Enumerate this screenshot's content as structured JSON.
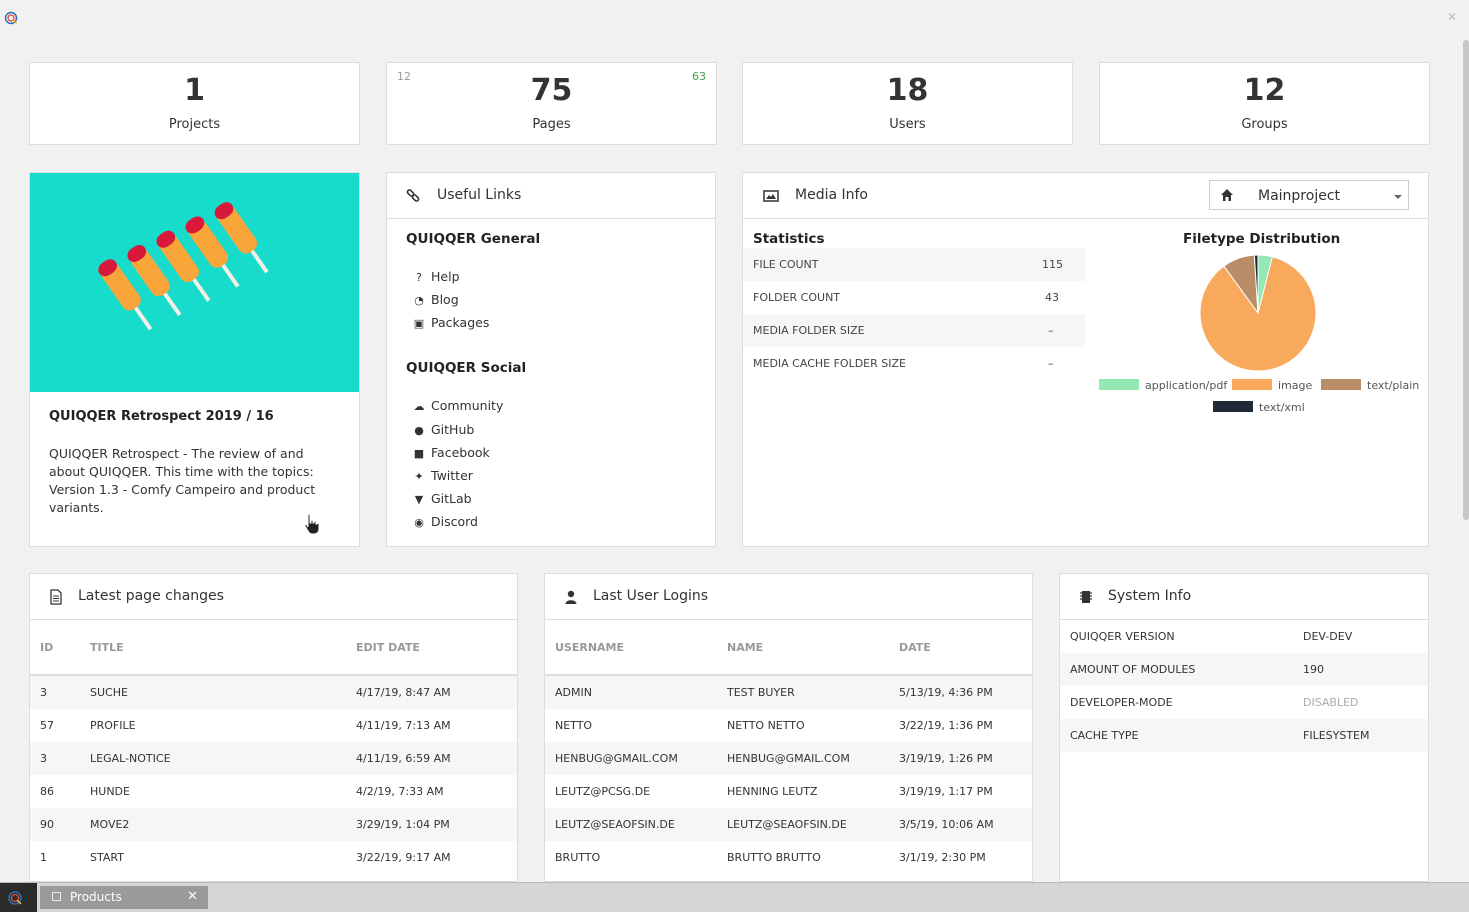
{
  "stats": [
    {
      "value": "1",
      "label": "Projects"
    },
    {
      "value": "75",
      "label": "Pages",
      "left_note": "12",
      "right_note": "63"
    },
    {
      "value": "18",
      "label": "Users"
    },
    {
      "value": "12",
      "label": "Groups"
    }
  ],
  "blog": {
    "title": "QUIQQER Retrospect 2019 / 16",
    "text": "QUIQQER Retrospect - The review of and about QUIQQER. This time with the topics: Version 1.3 - Comfy Campeiro and product variants."
  },
  "links": {
    "title": "Useful Links",
    "general_title": "QUIQQER General",
    "general": [
      {
        "icon": "question-icon",
        "label": "Help"
      },
      {
        "icon": "rss-icon",
        "label": "Blog"
      },
      {
        "icon": "gift-icon",
        "label": "Packages"
      }
    ],
    "social_title": "QUIQQER Social",
    "social": [
      {
        "icon": "comments-icon",
        "label": "Community"
      },
      {
        "icon": "github-icon",
        "label": "GitHub"
      },
      {
        "icon": "facebook-icon",
        "label": "Facebook"
      },
      {
        "icon": "twitter-icon",
        "label": "Twitter"
      },
      {
        "icon": "gitlab-icon",
        "label": "GitLab"
      },
      {
        "icon": "discord-icon",
        "label": "Discord"
      }
    ]
  },
  "media": {
    "title": "Media Info",
    "project_select": "Mainproject",
    "statistics_title": "Statistics",
    "rows": [
      {
        "key": "FILE COUNT",
        "value": "115"
      },
      {
        "key": "FOLDER COUNT",
        "value": "43"
      },
      {
        "key": "MEDIA FOLDER SIZE",
        "value": "–"
      },
      {
        "key": "MEDIA CACHE FOLDER SIZE",
        "value": "–"
      }
    ]
  },
  "chart_data": {
    "type": "pie",
    "title": "Filetype Distribution",
    "categories": [
      "application/pdf",
      "image",
      "text/plain",
      "text/xml"
    ],
    "values": [
      4,
      86,
      9,
      1
    ],
    "colors": [
      "#93e8b3",
      "#f9a95b",
      "#b98d67",
      "#1e2b36"
    ],
    "legend": "bottom"
  },
  "latest_pages": {
    "title": "Latest page changes",
    "columns": [
      "ID",
      "TITLE",
      "EDIT DATE"
    ],
    "rows": [
      [
        "3",
        "SUCHE",
        "4/17/19, 8:47 AM"
      ],
      [
        "57",
        "PROFILE",
        "4/11/19, 7:13 AM"
      ],
      [
        "3",
        "LEGAL-NOTICE",
        "4/11/19, 6:59 AM"
      ],
      [
        "86",
        "HUNDE",
        "4/2/19, 7:33 AM"
      ],
      [
        "90",
        "MOVE2",
        "3/29/19, 1:04 PM"
      ],
      [
        "1",
        "START",
        "3/22/19, 9:17 AM"
      ]
    ]
  },
  "user_logins": {
    "title": "Last User Logins",
    "columns": [
      "USERNAME",
      "NAME",
      "DATE"
    ],
    "rows": [
      [
        "ADMIN",
        "TEST BUYER",
        "5/13/19, 4:36 PM"
      ],
      [
        "NETTO",
        "NETTO NETTO",
        "3/22/19, 1:36 PM"
      ],
      [
        "HENBUG@GMAIL.COM",
        "HENBUG@GMAIL.COM",
        "3/19/19, 1:26 PM"
      ],
      [
        "LEUTZ@PCSG.DE",
        "HENNING LEUTZ",
        "3/19/19, 1:17 PM"
      ],
      [
        "LEUTZ@SEAOFSIN.DE",
        "LEUTZ@SEAOFSIN.DE",
        "3/5/19, 10:06 AM"
      ],
      [
        "BRUTTO",
        "BRUTTO BRUTTO",
        "3/1/19, 2:30 PM"
      ]
    ]
  },
  "system_info": {
    "title": "System Info",
    "rows": [
      {
        "key": "QUIQQER VERSION",
        "value": "DEV-DEV"
      },
      {
        "key": "AMOUNT OF MODULES",
        "value": "190"
      },
      {
        "key": "DEVELOPER-MODE",
        "value": "DISABLED"
      },
      {
        "key": "CACHE TYPE",
        "value": "FILESYSTEM"
      }
    ]
  },
  "taskbar": {
    "tab_label": "Products",
    "close_glyph": "✕"
  },
  "window": {
    "close_glyph": "✕"
  }
}
